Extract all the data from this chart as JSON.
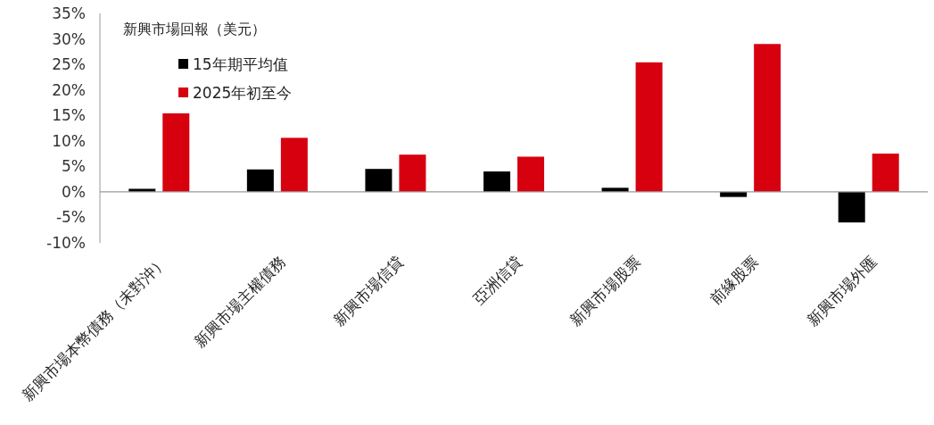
{
  "chart_data": {
    "type": "bar",
    "title": "新興市場回報（美元）",
    "categories": [
      "新興市場本幣債務（未對沖）",
      "新興市場主權債務",
      "新興市場信貸",
      "亞洲信貸",
      "新興市場股票",
      "前緣股票",
      "新興市場外匯"
    ],
    "series": [
      {
        "name": "15年期平均值",
        "color": "#000000",
        "values": [
          0.6,
          4.4,
          4.5,
          4.0,
          0.8,
          -1.0,
          -6.0
        ]
      },
      {
        "name": "2025年初至今",
        "color": "#d7000f",
        "values": [
          15.4,
          10.6,
          7.3,
          6.9,
          25.4,
          29.0,
          7.5
        ]
      }
    ],
    "ylim": [
      -10,
      35
    ],
    "yticks": [
      {
        "value": -10,
        "label": "-10%"
      },
      {
        "value": -5,
        "label": "-5%"
      },
      {
        "value": 0,
        "label": "0%"
      },
      {
        "value": 5,
        "label": "5%"
      },
      {
        "value": 10,
        "label": "10%"
      },
      {
        "value": 15,
        "label": "15%"
      },
      {
        "value": 20,
        "label": "20%"
      },
      {
        "value": 25,
        "label": "25%"
      },
      {
        "value": 30,
        "label": "30%"
      },
      {
        "value": 35,
        "label": "35%"
      }
    ],
    "legend": "top left"
  }
}
